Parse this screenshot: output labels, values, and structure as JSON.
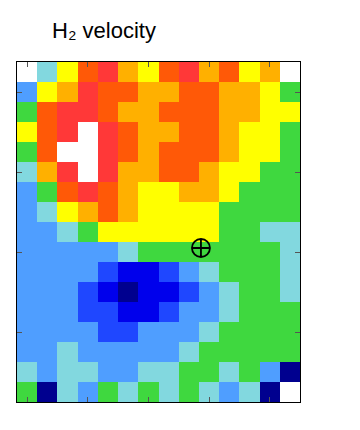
{
  "chart_data": {
    "type": "heatmap",
    "title": "H₂ velocity",
    "tick_labels": false,
    "xlim": [
      -0.5,
      13.5
    ],
    "ylim": [
      16.5,
      -0.5
    ],
    "xticks": [
      0,
      3,
      6,
      9,
      12
    ],
    "yticks": [
      1,
      5,
      9,
      13
    ],
    "zlim": [
      0,
      10
    ],
    "z": [
      [
        null,
        4,
        6,
        8,
        9,
        7,
        6,
        8,
        9,
        7,
        8,
        6,
        7,
        null
      ],
      [
        3,
        6,
        7,
        9,
        8,
        8,
        7,
        7,
        8,
        8,
        7,
        7,
        6,
        5
      ],
      [
        5,
        8,
        9,
        9,
        8,
        7,
        7,
        8,
        8,
        8,
        7,
        7,
        6,
        6
      ],
      [
        6,
        8,
        9,
        10,
        9,
        8,
        7,
        7,
        8,
        8,
        7,
        6,
        6,
        5
      ],
      [
        5,
        8,
        10,
        10,
        9,
        8,
        7,
        8,
        8,
        8,
        7,
        6,
        6,
        5
      ],
      [
        4,
        7,
        9,
        10,
        9,
        7,
        7,
        8,
        8,
        7,
        6,
        6,
        5,
        5
      ],
      [
        3,
        5,
        8,
        9,
        8,
        7,
        6,
        6,
        7,
        7,
        6,
        5,
        5,
        5
      ],
      [
        3,
        4,
        6,
        7,
        8,
        7,
        6,
        6,
        6,
        6,
        5,
        5,
        5,
        5
      ],
      [
        3,
        3,
        4,
        5,
        6,
        6,
        6,
        6,
        6,
        6,
        5,
        5,
        4,
        4
      ],
      [
        3,
        3,
        3,
        3,
        3,
        4,
        5,
        5,
        5,
        5,
        5,
        5,
        5,
        4
      ],
      [
        3,
        3,
        3,
        3,
        2,
        1,
        1,
        2,
        3,
        4,
        5,
        5,
        5,
        4
      ],
      [
        3,
        3,
        3,
        2,
        1,
        0,
        1,
        1,
        2,
        3,
        4,
        5,
        5,
        4
      ],
      [
        3,
        3,
        3,
        2,
        2,
        1,
        1,
        2,
        3,
        3,
        4,
        5,
        5,
        5
      ],
      [
        3,
        3,
        3,
        3,
        2,
        2,
        3,
        3,
        3,
        4,
        5,
        5,
        5,
        5
      ],
      [
        3,
        3,
        4,
        3,
        3,
        3,
        3,
        3,
        4,
        5,
        5,
        5,
        5,
        5
      ],
      [
        4,
        3,
        4,
        4,
        3,
        3,
        4,
        4,
        5,
        5,
        4,
        5,
        3,
        0
      ],
      [
        5,
        0,
        4,
        3,
        5,
        4,
        5,
        4,
        5,
        4,
        3,
        4,
        0,
        null
      ]
    ],
    "points": {
      "x": [
        8.6
      ],
      "y": [
        8.8
      ],
      "marker": "circle-cross-open",
      "color": "#000000"
    }
  }
}
